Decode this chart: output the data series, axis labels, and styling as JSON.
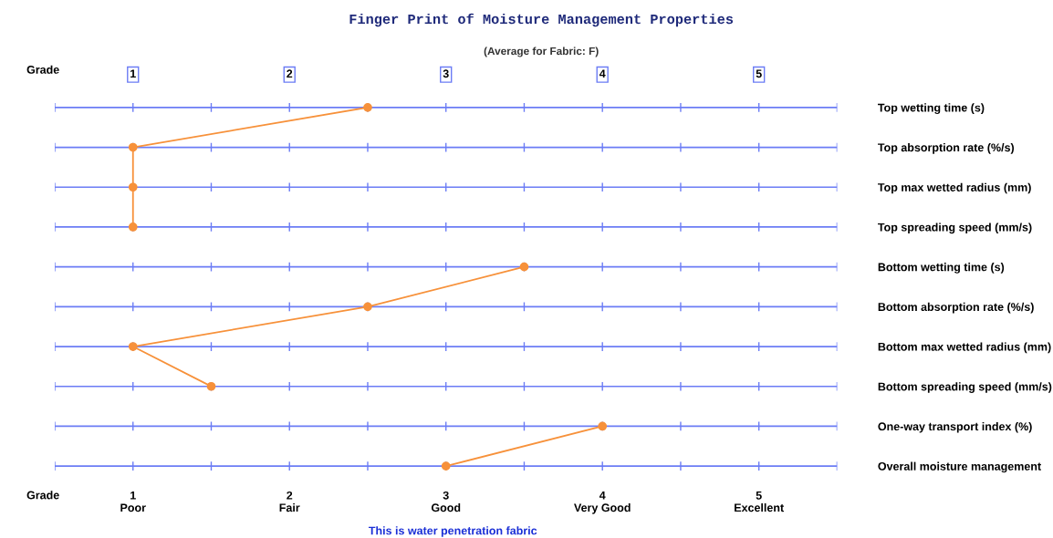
{
  "chart_data": {
    "type": "line",
    "title": "Finger Print of Moisture Management Properties",
    "subtitle": "(Average for Fabric: F)",
    "xlabel": "Grade",
    "x2label": "Grade",
    "categories": [
      "Top wetting time (s)",
      "Top absorption rate (%/s)",
      "Top max wetted radius (mm)",
      "Top spreading speed (mm/s)",
      "Bottom wetting time (s)",
      "Bottom absorption rate (%/s)",
      "Bottom max wetted radius (mm)",
      "Bottom spreading speed (mm/s)",
      "One-way transport index (%)",
      "Overall moisture management"
    ],
    "series": [
      {
        "color": "#f7913a",
        "values": [
          2.5,
          1,
          1,
          1,
          null,
          null,
          null,
          null,
          null,
          null
        ]
      },
      {
        "color": "#f7913a",
        "values": [
          null,
          null,
          null,
          null,
          3.5,
          2.5,
          1,
          1.5,
          null,
          null
        ]
      },
      {
        "color": "#f7913a",
        "values": [
          null,
          null,
          null,
          null,
          null,
          null,
          null,
          null,
          4,
          3
        ]
      }
    ],
    "xlim": [
      0.5,
      5.5
    ],
    "xticks": [
      {
        "value": 1,
        "label": "1\nPoor"
      },
      {
        "value": 2,
        "label": "2\nFair"
      },
      {
        "value": 3,
        "label": "3\nGood"
      },
      {
        "value": 4,
        "label": "4\nVery Good"
      },
      {
        "value": 5,
        "label": "5\nExcellent"
      }
    ],
    "x2lim": [
      0.5,
      5.5
    ],
    "x2ticks": [
      1,
      2,
      3,
      4,
      5
    ],
    "orientation": "horizontal",
    "grid": "y",
    "marker": "circle",
    "line_style": "solid",
    "legend": false,
    "annotations": [
      "This is water penetration fabric"
    ]
  }
}
